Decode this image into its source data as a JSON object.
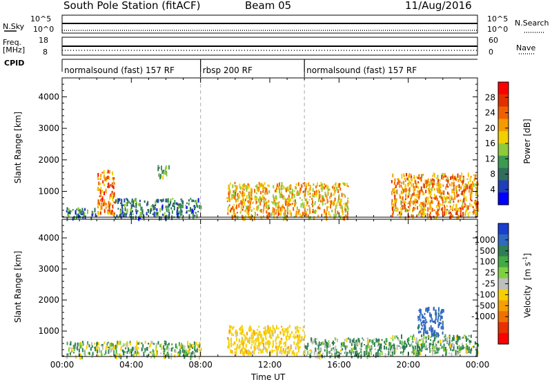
{
  "header": {
    "station": "South Pole Station (fitACF)",
    "beam": "Beam 05",
    "date": "11/Aug/2016"
  },
  "strips": {
    "nsky": {
      "label": "N.Sky",
      "ticks": [
        "10^5",
        "10^0"
      ]
    },
    "nsearch": {
      "label": "N.Search",
      "ticks": [
        "10^5",
        "10^0"
      ]
    },
    "freq": {
      "label_line1": "Freq.",
      "label_line2": "[MHz]",
      "ticks": [
        "18",
        "8"
      ]
    },
    "nave": {
      "label": "Nave",
      "ticks": [
        "60",
        "0"
      ]
    },
    "cpid": {
      "label": "CPID"
    }
  },
  "cpid_segments": [
    {
      "label": "normalsound (fast) 157 RF",
      "start_hour": 0,
      "end_hour": 8
    },
    {
      "label": "rbsp 200 RF",
      "start_hour": 8,
      "end_hour": 14
    },
    {
      "label": "normalsound (fast) 157 RF",
      "start_hour": 14,
      "end_hour": 24
    }
  ],
  "chart_data": [
    {
      "type": "heatmap",
      "title": "Power",
      "xlabel": "Time UT",
      "ylabel": "Slant Range [km]",
      "xlim_hours": [
        0,
        24
      ],
      "ylim_km": [
        180,
        4600
      ],
      "x_ticks": [
        "00:00",
        "04:00",
        "08:00",
        "12:00",
        "16:00",
        "20:00",
        "00:00"
      ],
      "y_ticks": [
        1000,
        2000,
        3000,
        4000
      ],
      "colorbar": {
        "label": "Power [dB]",
        "ticks": [
          "4",
          "8",
          "12",
          "16",
          "20",
          "24",
          "28"
        ],
        "range": [
          0,
          32
        ],
        "colors": [
          "#0000ff",
          "#1f3fb8",
          "#2f6e5c",
          "#3c9b50",
          "#8fca3a",
          "#f0d000",
          "#f59a00",
          "#f06000",
          "#e03000",
          "#ff0000"
        ]
      },
      "echo_regions_approx": [
        {
          "hours": [
            0.2,
            2.0
          ],
          "range_km": [
            180,
            500
          ],
          "level_db": 8
        },
        {
          "hours": [
            2.0,
            3.0
          ],
          "range_km": [
            300,
            1700
          ],
          "level_db": 24
        },
        {
          "hours": [
            5.5,
            6.2
          ],
          "range_km": [
            1500,
            1850
          ],
          "level_db": 12
        },
        {
          "hours": [
            3.0,
            8.0
          ],
          "range_km": [
            200,
            800
          ],
          "level_db": 8
        },
        {
          "hours": [
            9.5,
            16.5
          ],
          "range_km": [
            200,
            1300
          ],
          "level_db": 20
        },
        {
          "hours": [
            19.0,
            24.0
          ],
          "range_km": [
            200,
            1600
          ],
          "level_db": 22
        }
      ]
    },
    {
      "type": "heatmap",
      "title": "Velocity",
      "xlabel": "Time UT",
      "ylabel": "Slant Range [km]",
      "xlim_hours": [
        0,
        24
      ],
      "ylim_km": [
        180,
        4600
      ],
      "x_ticks": [
        "00:00",
        "04:00",
        "08:00",
        "12:00",
        "16:00",
        "20:00",
        "00:00"
      ],
      "y_ticks": [
        1000,
        2000,
        3000,
        4000
      ],
      "colorbar": {
        "label_main": "Velocity",
        "label_unit": "[m s",
        "label_exp": "-1",
        "label_close": "]",
        "ticks": [
          "1000",
          "500",
          "100",
          "25",
          "-25",
          "-100",
          "-500",
          "-1000"
        ],
        "colors": [
          "#1a3fd0",
          "#3168c0",
          "#2f7e54",
          "#44aa44",
          "#7fd040",
          "#bebebe",
          "#f7cf00",
          "#f5a000",
          "#f07000",
          "#e83000",
          "#ff0000"
        ]
      },
      "echo_regions_approx": [
        {
          "hours": [
            0.2,
            8.0
          ],
          "range_km": [
            200,
            700
          ],
          "velocity": 25
        },
        {
          "hours": [
            9.5,
            14.0
          ],
          "range_km": [
            300,
            1200
          ],
          "velocity": -300
        },
        {
          "hours": [
            14.0,
            19.0
          ],
          "range_km": [
            200,
            800
          ],
          "velocity": 100
        },
        {
          "hours": [
            19.0,
            24.0
          ],
          "range_km": [
            300,
            900
          ],
          "velocity": 100
        },
        {
          "hours": [
            20.5,
            22.0
          ],
          "range_km": [
            900,
            1800
          ],
          "velocity": 700
        }
      ]
    }
  ]
}
